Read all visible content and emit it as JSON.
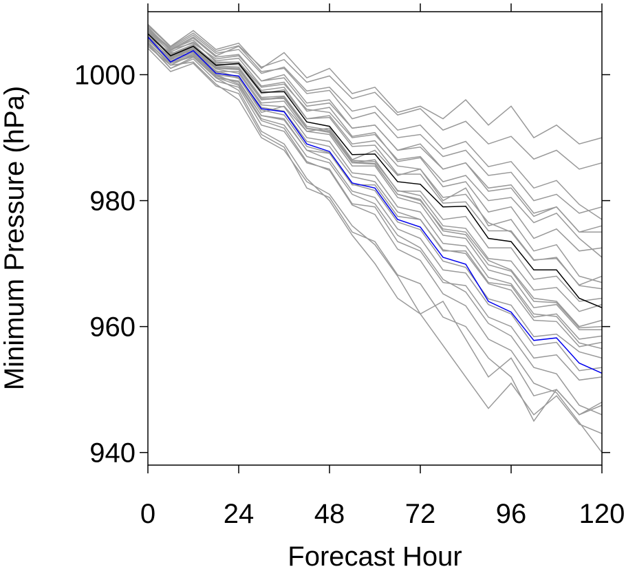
{
  "chart_data": {
    "type": "line",
    "title": "",
    "xlabel": "Forecast Hour",
    "ylabel": "Minimum Pressure (hPa)",
    "xlim": [
      0,
      120
    ],
    "ylim": [
      938,
      1010
    ],
    "xticks": [
      0,
      24,
      48,
      72,
      96,
      120
    ],
    "xtick_labels": [
      "0",
      "24",
      "48",
      "72",
      "96",
      "120"
    ],
    "yticks": [
      940,
      960,
      980,
      1000
    ],
    "ytick_labels": [
      "940",
      "960",
      "980",
      "1000"
    ],
    "grid": false,
    "legend": "none",
    "x": [
      0,
      6,
      12,
      18,
      24,
      30,
      36,
      42,
      48,
      54,
      60,
      66,
      72,
      78,
      84,
      90,
      96,
      102,
      108,
      114,
      120
    ],
    "series": [
      {
        "color": "#000000",
        "values": [
          1006.5,
          1003,
          1004.5,
          1001.5,
          1001.8,
          997.2,
          997.3,
          992.5,
          991.8,
          987.3,
          987.4,
          983,
          982.6,
          979,
          979.1,
          974,
          973.5,
          969,
          969,
          964.5,
          963
        ]
      },
      {
        "color": "#0000ee",
        "values": [
          1006,
          1002,
          1003.8,
          1000.2,
          999.8,
          994.6,
          994.1,
          989,
          987.8,
          982.8,
          982,
          977,
          975.8,
          971,
          969.9,
          964,
          962.3,
          957.8,
          958.2,
          954.2,
          952.6
        ]
      },
      {
        "color": "#999999",
        "values": [
          1007.5,
          1004,
          1006,
          1003,
          1004.5,
          1000.5,
          1001,
          997,
          997.5,
          993,
          994,
          990,
          990.5,
          987,
          988,
          984,
          984.5,
          980,
          981,
          978,
          979
        ]
      },
      {
        "color": "#999999",
        "values": [
          1008,
          1004.5,
          1007,
          1004,
          1005,
          1001,
          1003.5,
          999.5,
          1001,
          997,
          998,
          994,
          995,
          993,
          996,
          992,
          995,
          990,
          992,
          989,
          990
        ]
      },
      {
        "color": "#999999",
        "values": [
          1007,
          1004,
          1005,
          1002.5,
          1003,
          999,
          1000,
          995.5,
          996,
          991.5,
          992,
          988,
          989,
          985,
          986,
          981.5,
          982,
          977.5,
          979,
          975,
          976
        ]
      },
      {
        "color": "#999999",
        "values": [
          1006.8,
          1003,
          1004.2,
          1001.2,
          1001,
          996,
          996.5,
          991.5,
          991,
          986,
          986.5,
          981.5,
          981.5,
          977,
          977.5,
          972.5,
          972.5,
          967.5,
          968,
          964,
          964.5
        ]
      },
      {
        "color": "#999999",
        "values": [
          1005.5,
          1002,
          1003,
          999.5,
          999,
          993.5,
          993,
          988,
          987.5,
          982.5,
          982.5,
          977.5,
          977,
          972,
          972,
          967,
          966.5,
          961.5,
          962,
          958,
          958.5
        ]
      },
      {
        "color": "#999999",
        "values": [
          1005,
          1001,
          1002.5,
          999,
          998,
          992,
          991,
          986,
          985,
          979.5,
          979,
          973.5,
          972,
          967,
          966.5,
          961.5,
          960,
          955,
          955.5,
          951.5,
          952
        ]
      },
      {
        "color": "#999999",
        "values": [
          1004.5,
          1001.5,
          1002,
          998.5,
          996,
          990,
          988,
          983,
          981,
          976,
          973,
          968,
          962,
          964,
          958,
          952,
          955,
          949,
          950,
          946,
          948
        ]
      },
      {
        "color": "#999999",
        "values": [
          1006,
          1003.5,
          1003.5,
          1000,
          999.5,
          994,
          995,
          991,
          991.5,
          986.5,
          988,
          984,
          985,
          980,
          982,
          976,
          977,
          972,
          973,
          968,
          967
        ]
      },
      {
        "color": "#999999",
        "values": [
          1007.2,
          1004,
          1005.5,
          1002,
          1002,
          997.5,
          998,
          993,
          993.5,
          989,
          989.5,
          985.5,
          985,
          980.5,
          981,
          976.5,
          975,
          970.5,
          971,
          966.5,
          966
        ]
      },
      {
        "color": "#999999",
        "values": [
          1006.2,
          1002.5,
          1004,
          1000.5,
          1000.5,
          995.5,
          995.8,
          991,
          990.5,
          985.5,
          985.5,
          980.5,
          979.5,
          974.5,
          974,
          969,
          968,
          963,
          963.5,
          959.5,
          959.5
        ]
      },
      {
        "color": "#999999",
        "values": [
          1005.8,
          1002.2,
          1003.2,
          1000,
          998.5,
          993,
          992,
          987,
          986,
          981,
          979.5,
          974.5,
          972.5,
          967.5,
          965.5,
          960.5,
          958.5,
          953.5,
          952.5,
          947.5,
          946
        ]
      },
      {
        "color": "#999999",
        "values": [
          1007.6,
          1003.8,
          1005.8,
          1002.8,
          1003.2,
          999,
          999.5,
          995,
          995.5,
          991.5,
          992,
          988,
          988.5,
          985,
          986,
          982,
          982.5,
          978,
          979,
          975,
          975
        ]
      },
      {
        "color": "#999999",
        "values": [
          1004.8,
          1001,
          1002.8,
          999.5,
          997.5,
          991,
          989,
          983.5,
          980,
          974.5,
          970,
          964.5,
          962,
          957,
          952,
          947,
          951,
          946,
          949,
          944.5,
          943
        ]
      },
      {
        "color": "#999999",
        "values": [
          1005.2,
          1001.5,
          1003.2,
          999.8,
          998.8,
          993.5,
          992.8,
          988,
          986.5,
          981.5,
          980.5,
          975.5,
          974,
          969,
          968.5,
          963.5,
          962,
          957,
          957.5,
          953,
          953.5
        ]
      },
      {
        "color": "#999999",
        "values": [
          1006.4,
          1003.2,
          1004.6,
          1001.8,
          1002,
          998,
          998.5,
          994.5,
          994,
          990,
          990.5,
          986.5,
          987,
          983,
          984,
          980,
          980.5,
          976.5,
          978,
          974,
          971
        ]
      },
      {
        "color": "#999999",
        "values": [
          1006.6,
          1002.8,
          1004,
          1001,
          1000.8,
          996,
          996.3,
          991.5,
          990.8,
          986,
          985.8,
          981,
          980,
          975.5,
          975,
          970.5,
          969,
          964.5,
          964,
          960,
          961
        ]
      },
      {
        "color": "#999999",
        "values": [
          1005.6,
          1002.4,
          1003.4,
          1000.4,
          999.4,
          994.4,
          993.6,
          988.6,
          987.6,
          982.6,
          981.6,
          976.6,
          975.4,
          970.4,
          969.4,
          964.4,
          963.4,
          958.4,
          958.8,
          956,
          955
        ]
      },
      {
        "color": "#999999",
        "values": [
          1007,
          1003.6,
          1005.2,
          1002.2,
          1002.6,
          998.2,
          998.8,
          994.2,
          994.8,
          990.2,
          990.8,
          986.2,
          986.8,
          982.2,
          983,
          978.2,
          979,
          974,
          975.5,
          972,
          972.5
        ]
      },
      {
        "color": "#999999",
        "values": [
          1006.9,
          1003.1,
          1004.4,
          1001.4,
          1001.2,
          996.4,
          996.6,
          991.8,
          991.2,
          986.4,
          986.2,
          981.6,
          980.8,
          976,
          975.6,
          970.8,
          970.4,
          965.8,
          966.2,
          962.4,
          963.5
        ]
      },
      {
        "color": "#999999",
        "values": [
          1005.4,
          1002.6,
          1003.6,
          1000.6,
          999.6,
          994.8,
          994.2,
          989.4,
          988.6,
          983.8,
          983,
          978.2,
          977,
          972.2,
          971.6,
          966.8,
          965.8,
          961,
          960.8,
          956.8,
          957.5
        ]
      },
      {
        "color": "#999999",
        "values": [
          1004.2,
          1000.5,
          1001.8,
          998.2,
          997,
          990.5,
          988.5,
          982,
          980.5,
          975,
          973.5,
          968.2,
          966.8,
          961.5,
          960,
          955,
          952,
          945,
          950,
          946,
          947.5
        ]
      },
      {
        "color": "#999999",
        "values": [
          1006.1,
          1003.3,
          1004.8,
          1001.6,
          1001.6,
          997,
          997.6,
          993,
          993.2,
          988.6,
          988.8,
          984.2,
          984.2,
          979.6,
          979.8,
          975.2,
          975.2,
          970.6,
          970.8,
          966.6,
          968
        ]
      },
      {
        "color": "#999999",
        "values": [
          1007.3,
          1004.2,
          1006.3,
          1003.4,
          1004,
          1000.2,
          1001.2,
          997.4,
          998,
          994.2,
          995,
          991.2,
          992,
          988.2,
          989.4,
          985.4,
          986.2,
          982,
          983.2,
          979.4,
          977
        ]
      },
      {
        "color": "#999999",
        "values": [
          1006.7,
          1002.9,
          1004.1,
          1001.1,
          1000.9,
          996.2,
          996.2,
          991.4,
          991,
          986.2,
          985.9,
          981,
          980.2,
          975.2,
          974.6,
          969.8,
          968.8,
          964,
          963.8,
          959.8,
          960
        ]
      },
      {
        "color": "#999999",
        "values": [
          1005.9,
          1002.7,
          1003.9,
          1000.9,
          1000.2,
          995.2,
          994.9,
          990,
          989.4,
          984.4,
          984,
          979,
          978.2,
          973.2,
          972.8,
          967.8,
          966.8,
          962,
          961.6,
          957.4,
          956.5
        ]
      },
      {
        "color": "#999999",
        "values": [
          1005.1,
          1001.8,
          1002.9,
          999.6,
          998.3,
          992.7,
          991.5,
          986.2,
          984.8,
          979.3,
          977.8,
          972.3,
          970.5,
          965.2,
          963.3,
          958,
          956.2,
          951,
          949.5,
          944.8,
          940
        ]
      },
      {
        "color": "#999999",
        "values": [
          1007.8,
          1004.4,
          1006.6,
          1003.7,
          1004.6,
          1001.2,
          1002.4,
          998.8,
          999.8,
          996.2,
          997.2,
          993.6,
          994.6,
          991.2,
          992.6,
          989,
          990.2,
          986.6,
          988,
          985,
          986
        ]
      }
    ]
  }
}
